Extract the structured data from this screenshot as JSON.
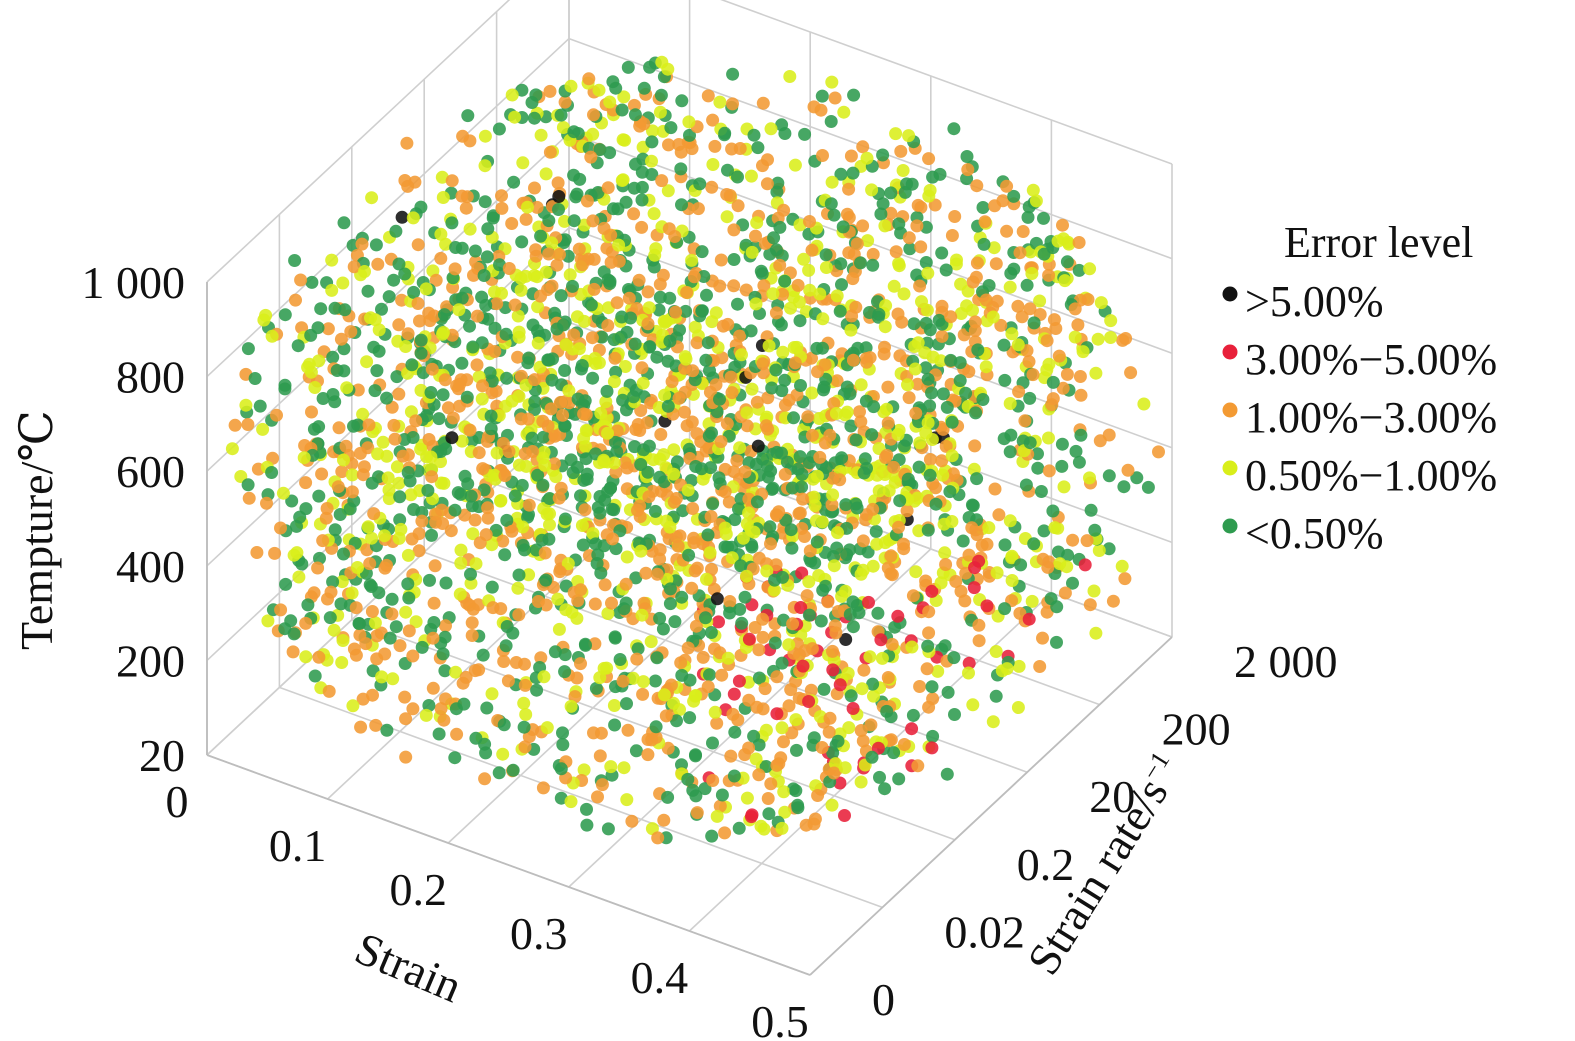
{
  "chart_data": {
    "type": "scatter",
    "projection": "3d",
    "x_axis": {
      "label": "Strain",
      "ticks": [
        "0",
        "0.1",
        "0.2",
        "0.3",
        "0.4",
        "0.5"
      ],
      "range": [
        0,
        0.5
      ]
    },
    "y_axis": {
      "label": "Strain rate/s",
      "label_superscript": "−1",
      "ticks": [
        "0",
        "0.02",
        "0.2",
        "20",
        "200",
        "2 000"
      ],
      "scale": "log"
    },
    "z_axis": {
      "label": "Tempture/℃",
      "ticks": [
        "20",
        "200",
        "400",
        "600",
        "800",
        "1 000"
      ],
      "range": [
        20,
        1000
      ]
    },
    "legend": {
      "title": "Error level",
      "placement": "right",
      "entries": [
        {
          "label": ">5.00%",
          "color": "#111111"
        },
        {
          "label": "3.00%−5.00%",
          "color": "#e8203a"
        },
        {
          "label": "1.00%−3.00%",
          "color": "#f39a33"
        },
        {
          "label": "0.50%−1.00%",
          "color": "#d9ee1a"
        },
        {
          "label": "<0.50%",
          "color": "#2e9b4f"
        }
      ]
    },
    "grid": true
  }
}
